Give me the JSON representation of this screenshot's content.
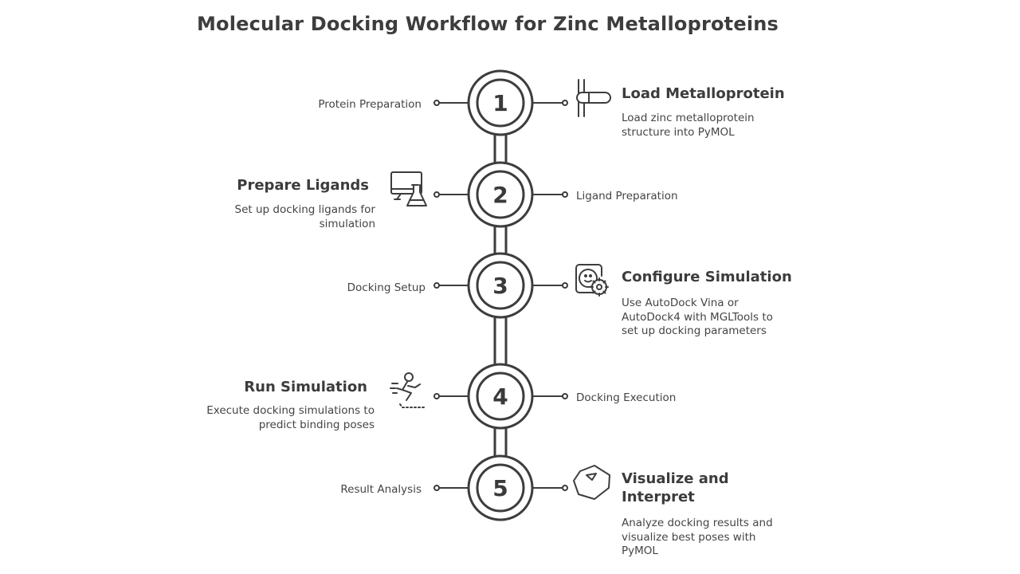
{
  "title": "Molecular Docking Workflow for Zinc Metalloproteins",
  "steps": [
    {
      "number": "1",
      "heading": "Load Metalloprotein",
      "description": "Load zinc metalloprotein structure into PyMOL",
      "label": "Protein Preparation",
      "icon": "pipette-icon"
    },
    {
      "number": "2",
      "heading": "Prepare Ligands",
      "description": "Set up docking ligands for simulation",
      "label": "Ligand Preparation",
      "icon": "monitor-flask-icon"
    },
    {
      "number": "3",
      "heading": "Configure Simulation",
      "description": "Use AutoDock Vina or AutoDock4 with MGLTools to set up docking parameters",
      "label": "Docking Setup",
      "icon": "settings-face-icon"
    },
    {
      "number": "4",
      "heading": "Run Simulation",
      "description": "Execute docking simulations to predict binding poses",
      "label": "Docking Execution",
      "icon": "running-person-icon"
    },
    {
      "number": "5",
      "heading": "Visualize and Interpret",
      "description": "Analyze docking results and visualize best poses with PyMOL",
      "label": "Result Analysis",
      "icon": "gem-icon"
    }
  ],
  "colors": {
    "stroke": "#3d3d3d",
    "text": "#3a3a3a",
    "background": "#ffffff"
  }
}
